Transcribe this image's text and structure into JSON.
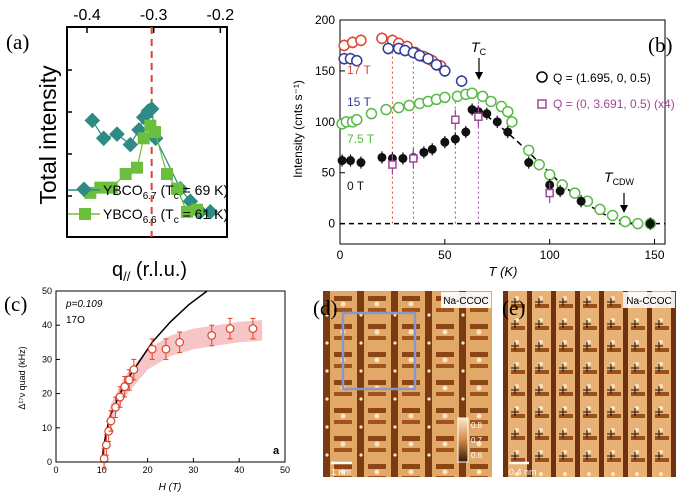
{
  "figure": {
    "panel_labels": [
      "(a)",
      "(b)",
      "(c)",
      "(d)",
      "(e)"
    ]
  },
  "colors": {
    "teal": "#2e8a85",
    "green_a": "#6cbf3c",
    "red": "#e0432f",
    "blue": "#2f3d9a",
    "green_b": "#58b947",
    "purple": "#a3469b",
    "black": "#111111",
    "dashed_red": "#e0432f",
    "band_c": "#f2b8b6",
    "stm_dark": "#4a2208",
    "stm_light": "#f7e2bd",
    "scan_box": "#8a97c9"
  },
  "chart_data": [
    {
      "panel": "a",
      "type": "line",
      "title": "",
      "xlabel": "q// (r.l.u.)",
      "xlabel_main": "q",
      "xlabel_sub": "//",
      "xlabel_rest": " (r.l.u.)",
      "ylabel": "Total intensity",
      "xlim": [
        -0.43,
        -0.19
      ],
      "ylim": [
        0,
        1
      ],
      "xticks_top": [
        -0.4,
        -0.3,
        -0.2
      ],
      "xtick_labels": [
        "-0.4",
        "-0.3",
        "-0.2"
      ],
      "vline_x": -0.303,
      "series": [
        {
          "name": "YBCO6.7 (Tc = 69 K)",
          "label_main": "YBCO",
          "label_sub": "6.7",
          "label_rest": " (T",
          "label_tc_sub": "c",
          "label_tail": " = 69 K)",
          "marker": "diamond",
          "x": [
            -0.392,
            -0.375,
            -0.355,
            -0.335,
            -0.322,
            -0.315,
            -0.308,
            -0.303,
            -0.297,
            -0.26,
            -0.245,
            -0.23,
            -0.215
          ],
          "y": [
            0.555,
            0.47,
            0.49,
            0.44,
            0.51,
            0.57,
            0.6,
            0.61,
            0.47,
            0.23,
            0.17,
            0.12,
            0.12
          ]
        },
        {
          "name": "YBCO6.6 (Tc = 61 K)",
          "label_main": "YBCO",
          "label_sub": "6.6",
          "label_rest": " (T",
          "label_tc_sub": "c",
          "label_tail": " = 61 K)",
          "marker": "square",
          "x": [
            -0.395,
            -0.38,
            -0.363,
            -0.342,
            -0.325,
            -0.315,
            -0.305,
            -0.298,
            -0.28,
            -0.265,
            -0.25,
            -0.235
          ],
          "y": [
            0.21,
            0.235,
            0.235,
            0.3,
            0.33,
            0.47,
            0.53,
            0.5,
            0.3,
            0.23,
            0.12,
            0.13
          ]
        }
      ]
    },
    {
      "panel": "b",
      "type": "scatter",
      "title": "",
      "xlabel": "T (K)",
      "ylabel": "Intensity (cnts s⁻¹)",
      "xlim": [
        0,
        155
      ],
      "ylim": [
        -20,
        200
      ],
      "xticks": [
        0,
        50,
        100,
        150
      ],
      "yticks": [
        0,
        50,
        100,
        150,
        200
      ],
      "tc_label": "T",
      "tc_sub": "C",
      "tcdw_label": "T",
      "tcdw_sub": "CDW",
      "legend": [
        {
          "symbol": "o",
          "text": "Q = (1.695, 0, 0.5)"
        },
        {
          "symbol": "sq",
          "text": "Q = (0, 3.691, 0.5) (x4)"
        }
      ],
      "field_labels": [
        "17 T",
        "15 T",
        "7.5 T",
        "0 T"
      ],
      "vlines_x": [
        25,
        35,
        55,
        66
      ],
      "series": [
        {
          "name": "17 T",
          "marker": "open-circle",
          "x": [
            2,
            6,
            10,
            20,
            25,
            28,
            32,
            36,
            40,
            44,
            48
          ],
          "y": [
            175,
            178,
            180,
            182,
            180,
            177,
            174,
            168,
            164,
            160,
            155
          ]
        },
        {
          "name": "15 T",
          "marker": "open-circle",
          "x": [
            2,
            5,
            8,
            23,
            28,
            31,
            35,
            38,
            42,
            46,
            50,
            58
          ],
          "y": [
            162,
            162,
            160,
            172,
            172,
            170,
            168,
            165,
            162,
            156,
            150,
            140
          ]
        },
        {
          "name": "7.5 T",
          "marker": "open-circle",
          "x": [
            1,
            3,
            6,
            8,
            15,
            22,
            28,
            33,
            38,
            42,
            46,
            50,
            56,
            60,
            63,
            68,
            72,
            77,
            80,
            82,
            90,
            95,
            100,
            106,
            112,
            118,
            124,
            130,
            136,
            142,
            148
          ],
          "y": [
            98,
            100,
            100,
            102,
            108,
            112,
            114,
            116,
            118,
            120,
            122,
            124,
            125,
            127,
            128,
            125,
            120,
            115,
            110,
            100,
            72,
            58,
            48,
            38,
            30,
            22,
            14,
            8,
            2,
            0,
            0
          ],
          "yerr": 5
        },
        {
          "name": "0 T",
          "marker": "filled-circle",
          "x": [
            1,
            5,
            10,
            20,
            25,
            30,
            35,
            40,
            44,
            50,
            55,
            60,
            63,
            66,
            70,
            75,
            80,
            90,
            100,
            105,
            115,
            148
          ],
          "y": [
            62,
            62,
            60,
            65,
            64,
            64,
            65,
            70,
            73,
            80,
            83,
            90,
            112,
            110,
            108,
            100,
            90,
            60,
            38,
            32,
            22,
            0
          ],
          "yerr": 6
        },
        {
          "name": "Q = (0, 3.691, 0.5) (x4)",
          "marker": "open-square",
          "x": [
            25,
            35,
            55,
            66,
            100
          ],
          "y": [
            58,
            64,
            102,
            105,
            30
          ],
          "yerr": 10
        }
      ],
      "fit_curve_x": [
        66,
        75,
        85,
        95,
        105,
        115,
        125,
        135,
        140
      ],
      "fit_curve_y": [
        112,
        98,
        80,
        60,
        40,
        23,
        10,
        2,
        0
      ]
    },
    {
      "panel": "c",
      "type": "scatter",
      "title": "",
      "xlabel": "H (T)",
      "ylabel": "Δ¹⁷ν quad (kHz)",
      "xlim": [
        0,
        50
      ],
      "ylim": [
        0,
        50
      ],
      "xticks": [
        0,
        10,
        20,
        30,
        40,
        50
      ],
      "yticks": [
        0,
        10,
        20,
        30,
        40,
        50
      ],
      "annotations": [
        "p=0.109",
        "17O",
        "a"
      ],
      "series": [
        {
          "name": "data",
          "marker": "open-circle",
          "x": [
            10.5,
            11,
            11.5,
            12,
            13,
            14,
            15,
            16,
            17,
            21,
            24,
            27,
            34,
            38,
            43
          ],
          "y": [
            1,
            5,
            9,
            12,
            16,
            19,
            22,
            24,
            27,
            33,
            33,
            35,
            37,
            39,
            39
          ],
          "yerr": 3
        }
      ],
      "fit_curve_x": [
        10,
        10.5,
        11,
        12,
        14,
        16,
        18,
        21,
        25,
        29,
        33
      ],
      "fit_curve_y": [
        0,
        5,
        9,
        14,
        20,
        25,
        29,
        35,
        41,
        46,
        50
      ],
      "band_x": [
        10,
        12,
        15,
        20,
        25,
        30,
        35,
        40,
        45
      ],
      "band_y": [
        0,
        14,
        22,
        30,
        34,
        36,
        37,
        38,
        38.5
      ]
    }
  ],
  "stm": {
    "d": {
      "title": "Na-CCOC",
      "scale": "1 nm",
      "colorbar_ticks": [
        "0.8",
        "0.7",
        "0.6"
      ]
    },
    "e": {
      "title": "Na-CCOC",
      "scale": "0.4 nm"
    }
  }
}
